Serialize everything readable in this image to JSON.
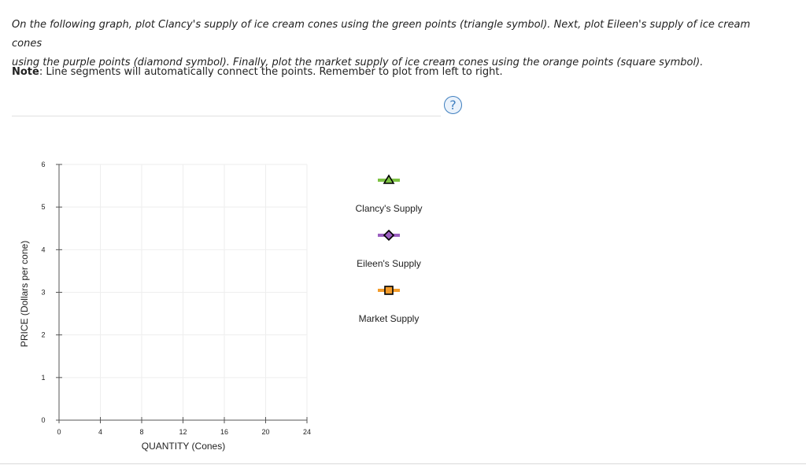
{
  "instructions": {
    "line1": "On the following graph, plot Clancy's supply of ice cream cones using the green points (triangle symbol). Next, plot Eileen's supply of ice cream cones",
    "line2": "using the purple points (diamond symbol). Finally, plot the market supply of ice cream cones using the orange points (square symbol).",
    "note_label": "Note",
    "note_text": ": Line segments will automatically connect the points. Remember to plot from left to right."
  },
  "help": {
    "label": "?",
    "icon": "question-mark-icon"
  },
  "chart_data": {
    "type": "line",
    "xlabel": "QUANTITY (Cones)",
    "ylabel": "PRICE (Dollars per cone)",
    "xlim": [
      0,
      24
    ],
    "ylim": [
      0,
      6
    ],
    "xticks": [
      0,
      4,
      8,
      12,
      16,
      20,
      24
    ],
    "yticks": [
      0,
      1,
      2,
      3,
      4,
      5,
      6
    ],
    "grid": true,
    "legend_position": "right",
    "series": [
      {
        "name": "Clancy's Supply",
        "symbol": "triangle",
        "color": "#7dc243",
        "points": []
      },
      {
        "name": "Eileen's Supply",
        "symbol": "diamond",
        "color": "#9b5fc0",
        "points": []
      },
      {
        "name": "Market Supply",
        "symbol": "square",
        "color": "#f39c2b",
        "points": []
      }
    ]
  }
}
